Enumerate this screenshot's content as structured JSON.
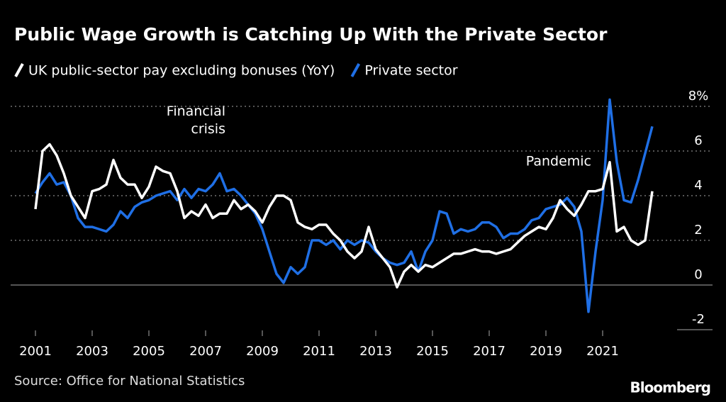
{
  "chart_data": {
    "type": "line",
    "title": "Public Wage Growth is Catching Up With the Private Sector",
    "source": "Source: Office for National Statistics",
    "brand": "Bloomberg",
    "annotations": [
      "Financial crisis",
      "Pandemic"
    ],
    "x": [
      2001,
      2001.25,
      2001.5,
      2001.75,
      2002,
      2002.25,
      2002.5,
      2002.75,
      2003,
      2003.25,
      2003.5,
      2003.75,
      2004,
      2004.25,
      2004.5,
      2004.75,
      2005,
      2005.25,
      2005.5,
      2005.75,
      2006,
      2006.25,
      2006.5,
      2006.75,
      2007,
      2007.25,
      2007.5,
      2007.75,
      2008,
      2008.25,
      2008.5,
      2008.75,
      2009,
      2009.25,
      2009.5,
      2009.75,
      2010,
      2010.25,
      2010.5,
      2010.75,
      2011,
      2011.25,
      2011.5,
      2011.75,
      2012,
      2012.25,
      2012.5,
      2012.75,
      2013,
      2013.25,
      2013.5,
      2013.75,
      2014,
      2014.25,
      2014.5,
      2014.75,
      2015,
      2015.25,
      2015.5,
      2015.75,
      2016,
      2016.25,
      2016.5,
      2016.75,
      2017,
      2017.25,
      2017.5,
      2017.75,
      2018,
      2018.25,
      2018.5,
      2018.75,
      2019,
      2019.25,
      2019.5,
      2019.75,
      2020,
      2020.25,
      2020.5,
      2020.75,
      2021,
      2021.25,
      2021.5,
      2021.75,
      2022,
      2022.25,
      2022.5,
      2022.75
    ],
    "series": [
      {
        "name": "UK public-sector pay excluding bonuses (YoY)",
        "color": "#ffffff",
        "values": [
          3.4,
          6.0,
          6.3,
          5.8,
          5.0,
          4.0,
          3.5,
          3.0,
          4.2,
          4.3,
          4.5,
          5.6,
          4.8,
          4.5,
          4.5,
          3.9,
          4.4,
          5.3,
          5.1,
          5.0,
          4.2,
          3.0,
          3.3,
          3.1,
          3.6,
          3.0,
          3.2,
          3.2,
          3.8,
          3.4,
          3.6,
          3.3,
          2.8,
          3.5,
          4.0,
          4.0,
          3.8,
          2.8,
          2.6,
          2.5,
          2.7,
          2.7,
          2.3,
          2.0,
          1.5,
          1.2,
          1.5,
          2.6,
          1.6,
          1.2,
          0.8,
          -0.1,
          0.6,
          0.9,
          0.6,
          0.9,
          0.8,
          1.0,
          1.2,
          1.4,
          1.4,
          1.5,
          1.6,
          1.5,
          1.5,
          1.4,
          1.5,
          1.6,
          1.9,
          2.2,
          2.4,
          2.6,
          2.5,
          3.0,
          3.8,
          3.4,
          3.1,
          3.6,
          4.2,
          4.2,
          4.3,
          5.5,
          2.4,
          2.6,
          2.0,
          1.8,
          2.0,
          4.2
        ]
      },
      {
        "name": "Private sector",
        "color": "#1f6fe5",
        "values": [
          4.1,
          4.6,
          5.0,
          4.5,
          4.6,
          4.0,
          3.0,
          2.6,
          2.6,
          2.5,
          2.4,
          2.7,
          3.3,
          3.0,
          3.5,
          3.7,
          3.8,
          4.0,
          4.1,
          4.2,
          3.8,
          4.3,
          3.9,
          4.3,
          4.2,
          4.5,
          5.0,
          4.2,
          4.3,
          4.0,
          3.6,
          3.2,
          2.5,
          1.5,
          0.5,
          0.1,
          0.8,
          0.5,
          0.8,
          2.0,
          2.0,
          1.8,
          2.0,
          1.6,
          2.0,
          1.8,
          2.0,
          1.9,
          1.5,
          1.2,
          1.0,
          0.9,
          1.0,
          1.5,
          0.6,
          1.5,
          2.0,
          3.3,
          3.2,
          2.3,
          2.5,
          2.4,
          2.5,
          2.8,
          2.8,
          2.6,
          2.1,
          2.3,
          2.3,
          2.5,
          2.9,
          3.0,
          3.4,
          3.5,
          3.6,
          3.9,
          3.5,
          2.4,
          -1.2,
          1.5,
          3.8,
          8.3,
          5.5,
          3.8,
          3.7,
          4.7,
          5.9,
          7.1
        ]
      }
    ],
    "xlim": [
      2000,
      2024
    ],
    "xticks": [
      2001,
      2003,
      2005,
      2007,
      2009,
      2011,
      2013,
      2015,
      2017,
      2019,
      2021
    ],
    "ylim": [
      -2.5,
      8.5
    ],
    "yticks": [
      -2,
      0,
      2,
      4,
      6,
      {
        "value": 8,
        "label": "8%"
      }
    ],
    "grid": true
  }
}
